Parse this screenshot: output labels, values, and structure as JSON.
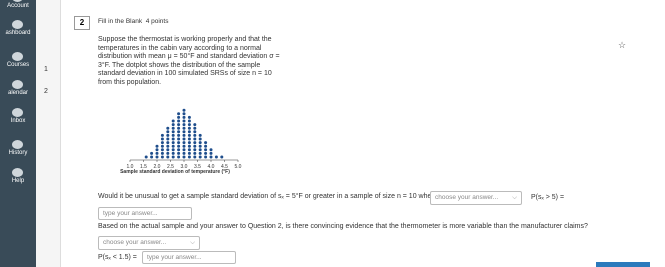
{
  "sidebar": {
    "items": [
      "Account",
      "ashboard",
      "Courses",
      "alendar",
      "Inbox",
      "History",
      "Help"
    ]
  },
  "question_nav": [
    "1",
    "2"
  ],
  "question": {
    "number": "2",
    "type": "Fill in the Blank",
    "points": "4 points",
    "prompt": "Suppose the thermostat is working properly and that the temperatures in the cabin vary according to a normal distribution with mean μ = 50°F and standard deviation σ = 3°F. The dotplot shows the distribution of the sample standard deviation in 100 simulated SRSs of size n = 10 from this population.",
    "part1": "Would it be unusual to get a sample standard deviation of sₓ = 5°F or greater in a sample of size n = 10 when σ = 3°F?",
    "dropdown1": "choose your answer...",
    "prob1": "P(sₓ > 5) =",
    "input1": "type your answer...",
    "part2": "Based on the actual sample and your answer to Question 2, is there convincing evidence that the thermometer is more variable than the manufacturer claims?",
    "dropdown2": "choose your answer...",
    "prob2": "P(sₓ < 1.5) =",
    "input2": "type your answer..."
  },
  "dotplot": {
    "xlabel": "Sample standard deviation of temperature (°F)",
    "xlim": [
      1,
      5
    ],
    "xticks": [
      {
        "value": 1,
        "label": "1.0"
      },
      1.5,
      {
        "value": 2,
        "label": "2.0"
      },
      2.5,
      {
        "value": 3,
        "label": "3.0"
      },
      3.5,
      {
        "value": 4,
        "label": "4.0"
      },
      4.5,
      {
        "value": 5,
        "label": "5.0"
      }
    ],
    "x": [
      1.6,
      1.8,
      2.0,
      2.2,
      2.4,
      2.6,
      2.8,
      3.0,
      3.2,
      3.4,
      3.6,
      3.8,
      4.0,
      4.2,
      4.4
    ],
    "counts": [
      1,
      2,
      4,
      7,
      9,
      11,
      13,
      14,
      12,
      10,
      7,
      5,
      3,
      1,
      1
    ]
  }
}
